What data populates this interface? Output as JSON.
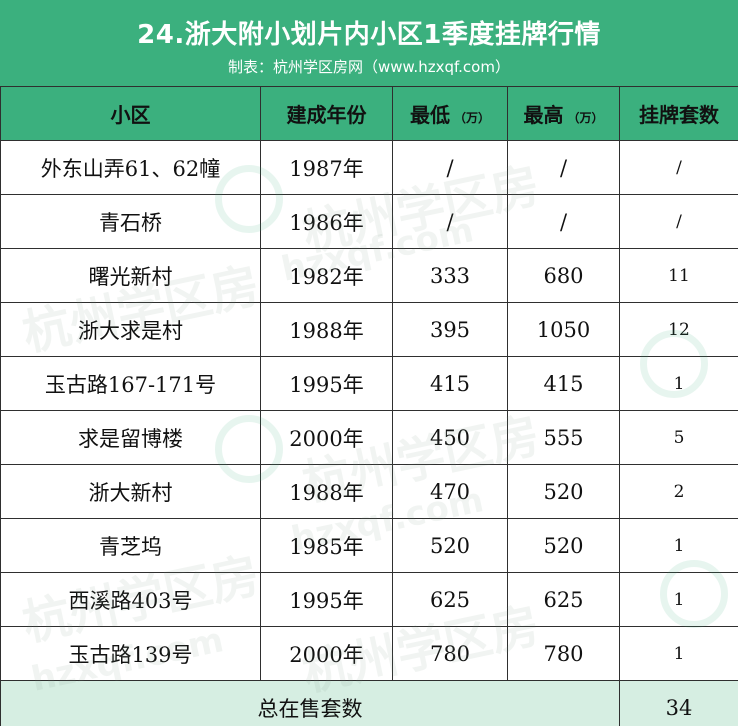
{
  "header": {
    "title": "24.浙大附小划片内小区1季度挂牌行情",
    "subtitle": "制表：杭州学区房网（www.hzxqf.com）"
  },
  "table": {
    "columns": [
      "小区",
      "建成年份",
      "最低",
      "最高",
      "挂牌套数"
    ],
    "column_units": [
      "",
      "",
      "（万）",
      "（万）",
      ""
    ],
    "rows": [
      [
        "外东山弄61、62幢",
        "1987年",
        "/",
        "/",
        "/"
      ],
      [
        "青石桥",
        "1986年",
        "/",
        "/",
        "/"
      ],
      [
        "曙光新村",
        "1982年",
        "333",
        "680",
        "11"
      ],
      [
        "浙大求是村",
        "1988年",
        "395",
        "1050",
        "12"
      ],
      [
        "玉古路167-171号",
        "1995年",
        "415",
        "415",
        "1"
      ],
      [
        "求是留博楼",
        "2000年",
        "450",
        "555",
        "5"
      ],
      [
        "浙大新村",
        "1988年",
        "470",
        "520",
        "2"
      ],
      [
        "青芝坞",
        "1985年",
        "520",
        "520",
        "1"
      ],
      [
        "西溪路403号",
        "1995年",
        "625",
        "625",
        "1"
      ],
      [
        "玉古路139号",
        "2000年",
        "780",
        "780",
        "1"
      ]
    ],
    "footer": {
      "label": "总在售套数",
      "total": "34"
    }
  },
  "watermark": {
    "text": "杭州学区房",
    "url": "hzxqf.com"
  },
  "colors": {
    "accent": "#3bb07e",
    "footer_bg": "#d6eee2",
    "border": "#2f2f2f"
  }
}
